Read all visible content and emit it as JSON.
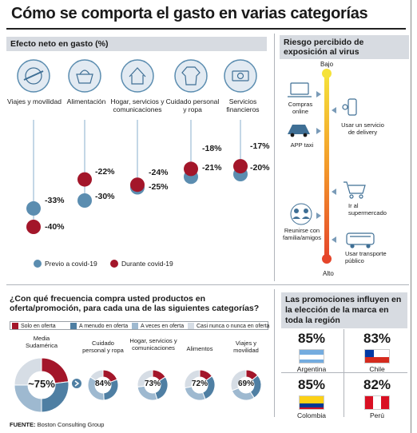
{
  "title": "Cómo se comporta el gasto en varias categorías",
  "left_section": {
    "header": "Efecto neto en gasto (%)",
    "categories": [
      {
        "label": "Viajes y movilidad",
        "icon": "plane-globe-icon",
        "previo": -33,
        "durante": -40
      },
      {
        "label": "Alimentación",
        "icon": "shopping-basket-icon",
        "previo": -30,
        "durante": -22
      },
      {
        "label": "Hogar, servicios y comunicaciones",
        "icon": "house-icon",
        "previo": -25,
        "durante": -24
      },
      {
        "label": "Cuidado personal y ropa",
        "icon": "shirt-icon",
        "previo": -21,
        "durante": -18
      },
      {
        "label": "Servicios financieros",
        "icon": "money-icon",
        "previo": -20,
        "durante": -17
      }
    ],
    "pct_labels": {
      "c0_prev": "-33%",
      "c0_dur": "-40%",
      "c1_prev": "-30%",
      "c1_dur": "-22%",
      "c2_prev": "-25%",
      "c2_dur": "-24%",
      "c3_prev": "-21%",
      "c3_dur": "-18%",
      "c4_prev": "-20%",
      "c4_dur": "-17%"
    },
    "cat_labels": [
      "Viajes y movilidad",
      "Alimentación",
      "Hogar, servicios y comunicaciones",
      "Cuidado personal y ropa",
      "Servicios financieros"
    ],
    "legend": {
      "previo": "Previo a covid-19",
      "durante": "Durante covid-19"
    },
    "colors": {
      "previo": "#5b8db0",
      "durante": "#a3162a",
      "stem": "#c4d7e6"
    }
  },
  "right_section": {
    "header": "Riesgo percibido de exposición al virus",
    "top_label": "Bajo",
    "bottom_label": "Alto",
    "items_left": [
      "Compras online",
      "APP taxi",
      "Reunirse con familia/amigos"
    ],
    "items_right": [
      "Usar un servicio de delivery",
      "Ir al supermercado",
      "Usar transporte público"
    ],
    "gradient": [
      "#f5e23a",
      "#f39a2a",
      "#e5452a"
    ]
  },
  "frequency_section": {
    "title": "¿Con qué frecuencia compra usted productos en oferta/promoción, para cada una de las siguientes categorías?",
    "legend": [
      "Solo en oferta",
      "A menudo en oferta",
      "A veces en oferta",
      "Casi nunca o nunca en oferta"
    ],
    "legend_colors": [
      "#a3162a",
      "#4f7fa3",
      "#9eb9d0",
      "#d6dde5"
    ],
    "donuts": [
      {
        "label": "Media Sudamérica",
        "center": "~75%"
      },
      {
        "label": "Cuidado personal y ropa",
        "center": "84%"
      },
      {
        "label": "Hogar, servicios y comunicaciones",
        "center": "73%"
      },
      {
        "label": "Alimentos",
        "center": "72%"
      },
      {
        "label": "Viajes y movilidad",
        "center": "69%"
      }
    ]
  },
  "chart_data": [
    {
      "type": "scatter",
      "title": "Efecto neto en gasto (%)",
      "categories": [
        "Viajes y movilidad",
        "Alimentación",
        "Hogar, servicios y comunicaciones",
        "Cuidado personal y ropa",
        "Servicios financieros"
      ],
      "series": [
        {
          "name": "Previo a covid-19",
          "values": [
            -33,
            -30,
            -25,
            -21,
            -20
          ]
        },
        {
          "name": "Durante covid-19",
          "values": [
            -40,
            -22,
            -24,
            -18,
            -17
          ]
        }
      ]
    },
    {
      "type": "pie",
      "title": "¿Con qué frecuencia compra usted productos en oferta/promoción, para cada una de las siguientes categorías?",
      "categories": [
        "Media Sudamérica",
        "Cuidado personal y ropa",
        "Hogar, servicios y comunicaciones",
        "Alimentos",
        "Viajes y movilidad"
      ],
      "series": [
        {
          "name": "Solo en oferta",
          "values": [
            23,
            19,
            16,
            15,
            14
          ]
        },
        {
          "name": "A menudo en oferta",
          "values": [
            27,
            30,
            29,
            29,
            27
          ]
        },
        {
          "name": "A veces en oferta",
          "values": [
            25,
            35,
            28,
            28,
            28
          ]
        },
        {
          "name": "Casi nunca o nunca en oferta",
          "values": [
            25,
            16,
            27,
            28,
            31
          ]
        }
      ]
    },
    {
      "type": "table",
      "title": "Las promociones influyen en la elección de la marca en toda la región",
      "categories": [
        "Argentina",
        "Chile",
        "Colombia",
        "Perú"
      ],
      "values": [
        85,
        83,
        85,
        82
      ]
    }
  ],
  "promo_section": {
    "title": "Las promociones influyen en la elección de la marca en toda la región",
    "countries": [
      {
        "name": "Argentina",
        "pct": "85%"
      },
      {
        "name": "Chile",
        "pct": "83%"
      },
      {
        "name": "Colombia",
        "pct": "85%"
      },
      {
        "name": "Perú",
        "pct": "82%"
      }
    ]
  },
  "source": {
    "prefix": "FUENTE:",
    "text": "Boston Consulting Group"
  }
}
